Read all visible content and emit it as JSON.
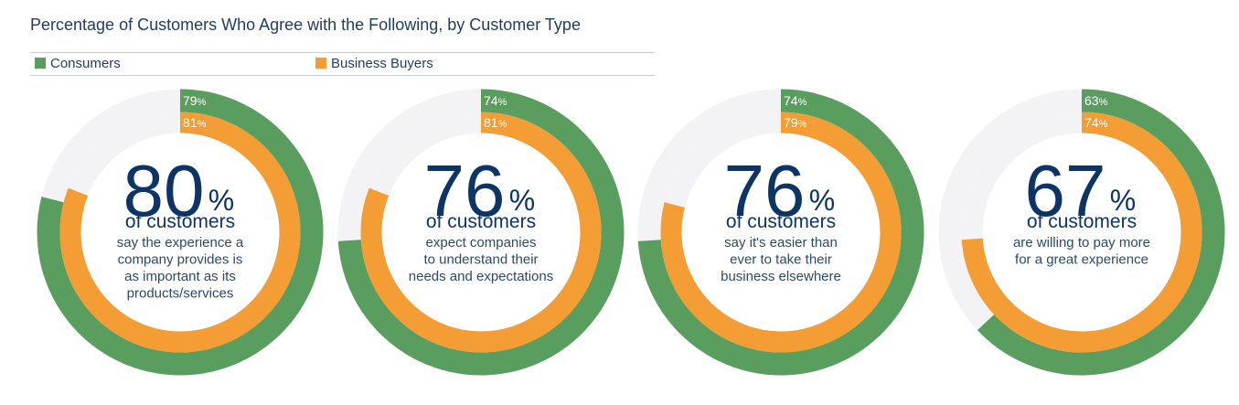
{
  "title": "Percentage of Customers Who Agree with the Following, by Customer Type",
  "legend": {
    "consumers": "Consumers",
    "business": "Business Buyers"
  },
  "colors": {
    "consumers": "#5a9e5f",
    "business": "#f39d34",
    "track": "#f3f2f4"
  },
  "chart_data": {
    "type": "donut",
    "series_names": [
      "Consumers",
      "Business Buyers"
    ],
    "items": [
      {
        "overall": "80",
        "unit": "%",
        "headline": "of customers",
        "description": [
          "say the experience a",
          "company provides is",
          "as important as its",
          "products/services"
        ],
        "consumers": 79,
        "business": 81
      },
      {
        "overall": "76",
        "unit": "%",
        "headline": "of customers",
        "description": [
          "expect companies",
          "to understand their",
          "needs and expectations"
        ],
        "consumers": 74,
        "business": 81
      },
      {
        "overall": "76",
        "unit": "%",
        "headline": "of customers",
        "description": [
          "say it's easier than",
          "ever to take their",
          "business elsewhere"
        ],
        "consumers": 74,
        "business": 79
      },
      {
        "overall": "67",
        "unit": "%",
        "headline": "of customers",
        "description": [
          "are willing to pay more",
          "for a great experience"
        ],
        "consumers": 63,
        "business": 74
      }
    ]
  }
}
